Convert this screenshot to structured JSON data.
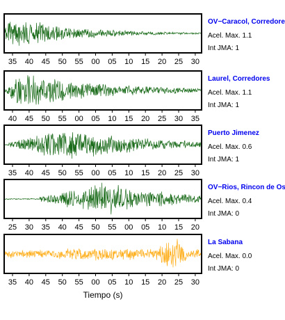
{
  "chart_data": {
    "type": "line",
    "xlabel": "Tiempo (s)",
    "panels": [
      {
        "station": "OV−Caracol, Corredore",
        "acel_label": "Acel. Max. 1.1",
        "int_label": "Int JMA: 1",
        "color": "#1a6b1a",
        "ticks": [
          "35",
          "40",
          "45",
          "50",
          "55",
          "00",
          "05",
          "10",
          "15",
          "20",
          "25",
          "30"
        ],
        "amplitude": 1.1,
        "onset": 0.0,
        "peak_at": 0.03,
        "decay": 0.32
      },
      {
        "station": "Laurel, Corredores",
        "acel_label": "Acel. Max. 1.1",
        "int_label": "Int JMA: 1",
        "color": "#1a6b1a",
        "ticks": [
          "40",
          "45",
          "50",
          "55",
          "00",
          "05",
          "10",
          "15",
          "20",
          "25",
          "30",
          "35"
        ],
        "amplitude": 1.1,
        "onset": 0.0,
        "peak_at": 0.08,
        "decay": 0.45
      },
      {
        "station": "Puerto Jimenez",
        "acel_label": "Acel. Max. 0.6",
        "int_label": "Int JMA: 1",
        "color": "#1a6b1a",
        "ticks": [
          "35",
          "40",
          "45",
          "50",
          "55",
          "00",
          "05",
          "10",
          "15",
          "20",
          "25",
          "30"
        ],
        "amplitude": 0.6,
        "onset": 0.02,
        "peak_at": 0.32,
        "decay": 0.4
      },
      {
        "station": "OV−Rios, Rincon de Os",
        "acel_label": "Acel. Max. 0.4",
        "int_label": "Int JMA: 0",
        "color": "#1a6b1a",
        "ticks": [
          "25",
          "30",
          "35",
          "40",
          "45",
          "50",
          "55",
          "00",
          "05",
          "10",
          "15",
          "20"
        ],
        "amplitude": 0.4,
        "onset": 0.18,
        "peak_at": 0.5,
        "decay": 0.35
      },
      {
        "station": "La Sabana",
        "acel_label": "Acel. Max. 0.0",
        "int_label": "Int JMA: 0",
        "color": "#ffae1a",
        "ticks": [
          "35",
          "40",
          "45",
          "50",
          "55",
          "00",
          "05",
          "10",
          "15",
          "20",
          "25",
          "30"
        ],
        "amplitude": 0.0,
        "onset": 0.0,
        "peak_at": 0.85,
        "decay": 0.2
      }
    ]
  }
}
